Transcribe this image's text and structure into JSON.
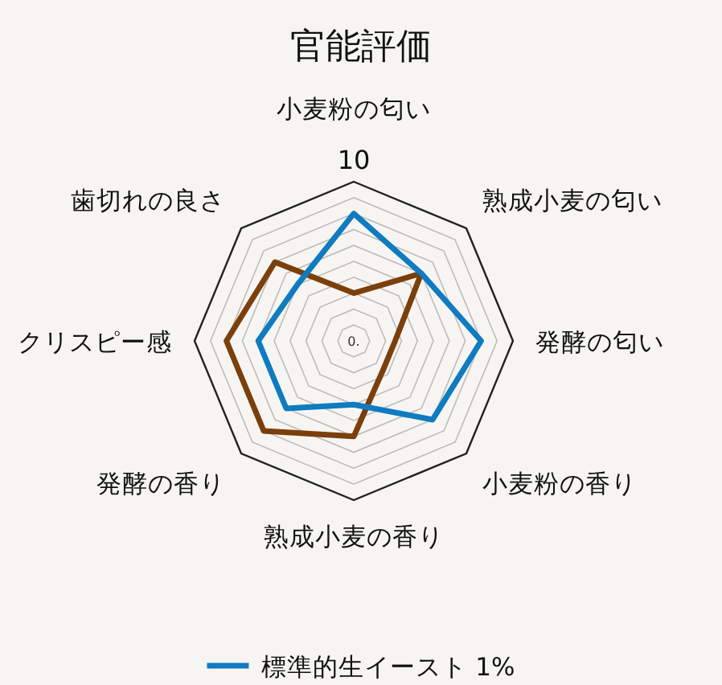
{
  "chart_data": {
    "type": "radar",
    "title": "官能評価",
    "categories": [
      "小麦粉の匂い",
      "熟成小麦の匂い",
      "発酵の匂い",
      "小麦粉の香り",
      "熟成小麦の香り",
      "発酵の香り",
      "クリスピー感",
      "歯切れの良さ"
    ],
    "ylim": [
      0,
      10
    ],
    "yticks": [
      {
        "value": 0,
        "label": "0."
      },
      10
    ],
    "grid": true,
    "legend": "bottom",
    "marker": "none",
    "line_style": "solid",
    "series": [
      {
        "color": "#7b3f0c",
        "values": [
          3,
          6,
          2.6,
          2.6,
          6,
          8,
          8,
          7
        ]
      },
      {
        "name": "標準的生イースト 1%",
        "color": "#0f7bc0",
        "values": [
          8,
          6,
          8,
          7,
          4,
          6,
          6,
          5
        ]
      }
    ]
  }
}
